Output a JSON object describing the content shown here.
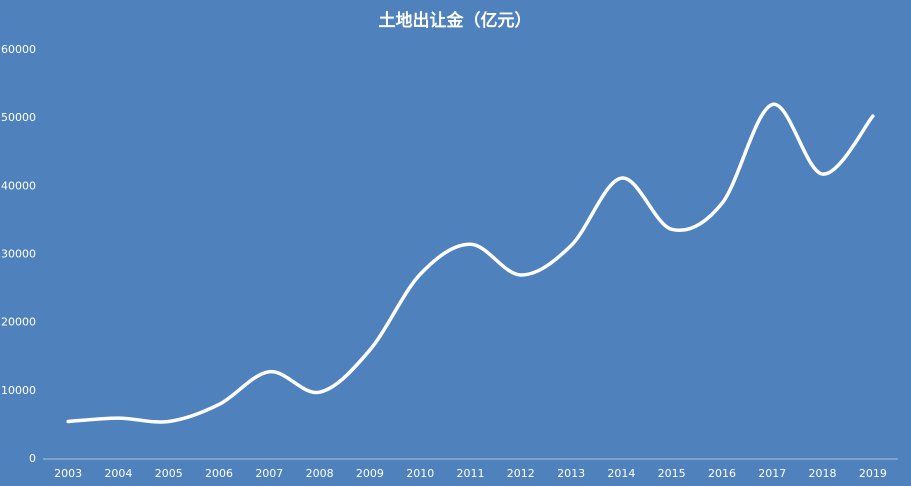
{
  "chart_data": {
    "type": "line",
    "title": "土地出让金（亿元）",
    "categories": [
      "2003",
      "2004",
      "2005",
      "2006",
      "2007",
      "2008",
      "2009",
      "2010",
      "2011",
      "2012",
      "2013",
      "2014",
      "2015",
      "2016",
      "2017",
      "2018",
      "2019"
    ],
    "values": [
      5500,
      6000,
      5500,
      8000,
      12800,
      9800,
      16000,
      27100,
      31500,
      27000,
      31300,
      41200,
      33700,
      37500,
      52000,
      41800,
      50300
    ],
    "color": "#ffffff",
    "ylim": [
      0,
      60000
    ],
    "yticks": [
      0,
      10000,
      20000,
      30000,
      40000,
      50000,
      60000
    ],
    "drop_lines": true
  }
}
